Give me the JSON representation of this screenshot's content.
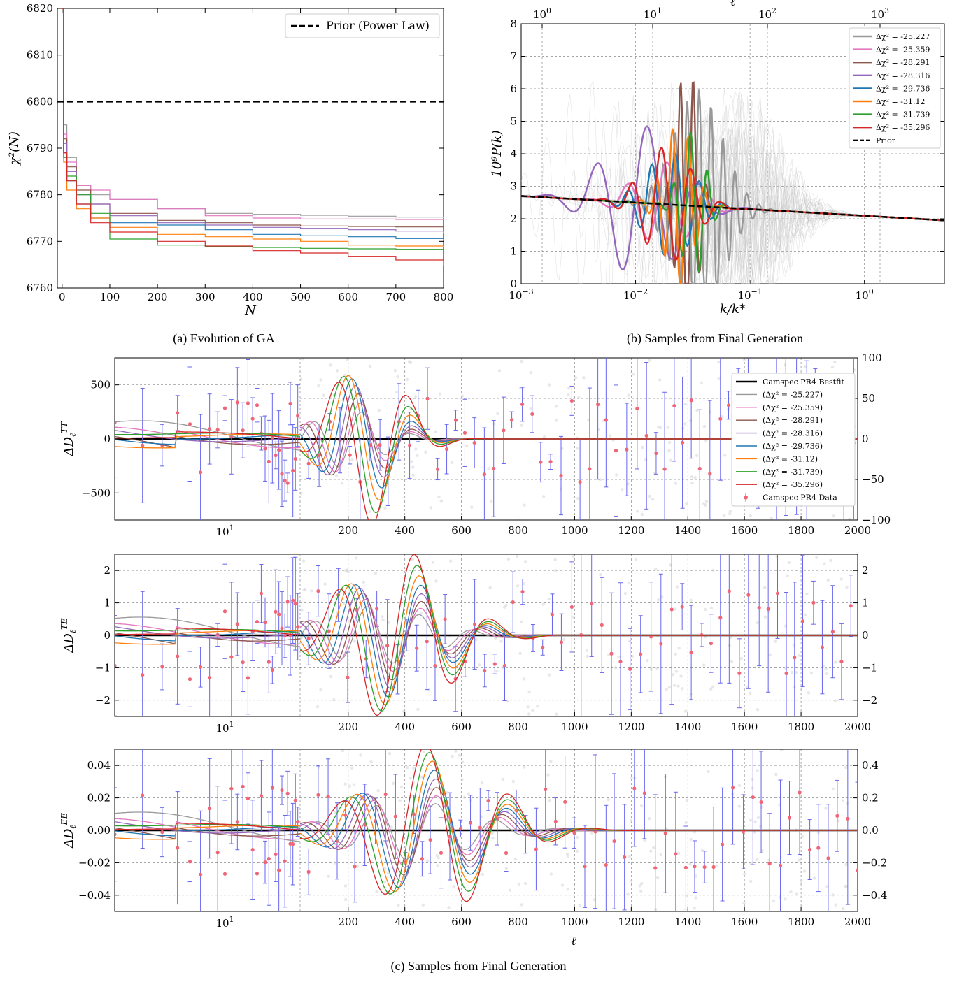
{
  "captions": {
    "a": "(a) Evolution of GA",
    "b": "(b) Samples from Final Generation",
    "c": "(c) Samples from Final Generation"
  },
  "colors": {
    "gray": "#999999",
    "pink": "#e377c2",
    "brown": "#8c564b",
    "purple": "#9467bd",
    "blue": "#1f77b4",
    "orange": "#ff7f0e",
    "green": "#2ca02c",
    "red": "#d62728",
    "errorbar": "#6666ee",
    "marker": "#ee6677"
  },
  "chart_data": [
    {
      "id": "a",
      "type": "line",
      "xlabel": "N",
      "ylabel": "χ²(N)",
      "xlim": [
        -10,
        800
      ],
      "ylim": [
        6760,
        6820
      ],
      "xticks": [
        0,
        100,
        200,
        300,
        400,
        500,
        600,
        700,
        800
      ],
      "yticks": [
        6760,
        6770,
        6780,
        6790,
        6800,
        6810,
        6820
      ],
      "legend": {
        "position": "top-right",
        "entries": [
          "Prior (Power Law)"
        ]
      },
      "prior_value": 6800,
      "series": [
        {
          "color": "gray",
          "x": [
            0,
            3,
            10,
            30,
            60,
            100,
            200,
            300,
            400,
            500,
            600,
            700,
            800
          ],
          "y": [
            6820,
            6795,
            6788,
            6782,
            6780,
            6779,
            6777,
            6776,
            6775.8,
            6775.6,
            6775.4,
            6775.2,
            6775.0
          ]
        },
        {
          "color": "pink",
          "x": [
            0,
            3,
            10,
            30,
            60,
            100,
            200,
            300,
            400,
            500,
            600,
            700,
            800
          ],
          "y": [
            6820,
            6793,
            6787,
            6782,
            6781,
            6779,
            6777,
            6775.5,
            6775,
            6774.8,
            6774.8,
            6774.7,
            6774.6
          ]
        },
        {
          "color": "brown",
          "x": [
            0,
            3,
            10,
            30,
            60,
            100,
            200,
            300,
            400,
            500,
            600,
            700,
            800
          ],
          "y": [
            6820,
            6792,
            6786,
            6781,
            6778,
            6776,
            6774.5,
            6774,
            6773.5,
            6773.3,
            6773.2,
            6773.1,
            6773.0
          ]
        },
        {
          "color": "purple",
          "x": [
            0,
            3,
            10,
            30,
            60,
            100,
            200,
            300,
            400,
            500,
            600,
            700,
            800
          ],
          "y": [
            6820,
            6791,
            6785,
            6780,
            6778,
            6775.5,
            6774,
            6773.5,
            6773,
            6772.8,
            6772.5,
            6772.2,
            6771.7
          ]
        },
        {
          "color": "blue",
          "x": [
            0,
            3,
            10,
            30,
            60,
            100,
            200,
            300,
            400,
            500,
            600,
            700,
            800
          ],
          "y": [
            6820,
            6789,
            6783,
            6778,
            6775,
            6774,
            6773.5,
            6772.5,
            6771.5,
            6771.2,
            6771.0,
            6770.6,
            6770.2
          ]
        },
        {
          "color": "orange",
          "x": [
            0,
            3,
            10,
            30,
            60,
            100,
            200,
            300,
            400,
            500,
            600,
            700,
            800
          ],
          "y": [
            6820,
            6787,
            6781,
            6777,
            6775,
            6773,
            6771.5,
            6771,
            6770.5,
            6770,
            6769.2,
            6769,
            6768.8
          ]
        },
        {
          "color": "green",
          "x": [
            0,
            3,
            10,
            30,
            60,
            100,
            200,
            300,
            400,
            500,
            600,
            700,
            800
          ],
          "y": [
            6820,
            6788,
            6784,
            6780,
            6776,
            6770.5,
            6769.2,
            6768.9,
            6768.7,
            6768.5,
            6768.4,
            6768.3,
            6768.2
          ]
        },
        {
          "color": "red",
          "x": [
            0,
            3,
            10,
            30,
            60,
            100,
            200,
            300,
            400,
            500,
            600,
            700,
            800
          ],
          "y": [
            6820,
            6789,
            6783,
            6778,
            6774,
            6772,
            6770,
            6769,
            6768,
            6767.5,
            6766.8,
            6766,
            6764.7
          ]
        }
      ]
    },
    {
      "id": "b",
      "type": "line",
      "xlabel": "k/k*",
      "ylabel": "10⁹P(k)",
      "toplabel": "ℓ",
      "xscale": "log",
      "xlim": [
        0.001,
        5.0
      ],
      "ylim": [
        0,
        8
      ],
      "yticks": [
        0,
        1,
        2,
        3,
        4,
        5,
        6,
        7,
        8
      ],
      "xticks": [
        {
          "v": 0.001,
          "base": "10",
          "exp": "−3"
        },
        {
          "v": 0.01,
          "base": "10",
          "exp": "−2"
        },
        {
          "v": 0.1,
          "base": "10",
          "exp": "−1"
        },
        {
          "v": 1,
          "base": "10",
          "exp": "0"
        }
      ],
      "top_ticks": [
        {
          "base": "10",
          "exp": "0"
        },
        {
          "base": "10",
          "exp": "1"
        },
        {
          "base": "10",
          "exp": "2"
        },
        {
          "base": "10",
          "exp": "3"
        }
      ],
      "legend": {
        "position": "top-right",
        "entries": [
          {
            "label": "Δχ² = -25.227",
            "color": "gray"
          },
          {
            "label": "Δχ² = -25.359",
            "color": "pink"
          },
          {
            "label": "Δχ² = -28.291",
            "color": "brown"
          },
          {
            "label": "Δχ² = -28.316",
            "color": "purple"
          },
          {
            "label": "Δχ² = -29.736",
            "color": "blue"
          },
          {
            "label": "Δχ² = -31.12",
            "color": "orange"
          },
          {
            "label": "Δχ² = -31.739",
            "color": "green"
          },
          {
            "label": "Δχ² = -35.296",
            "color": "red"
          },
          {
            "label": "Prior",
            "color": "black",
            "dashed": true
          }
        ]
      },
      "prior": {
        "k": [
          0.001,
          5.0
        ],
        "P": [
          2.7,
          1.95
        ]
      }
    },
    {
      "id": "c1",
      "type": "line",
      "ylabel": "ΔD_ℓ^TT",
      "left": {
        "xscale": "log",
        "xlim": [
          2,
          30
        ],
        "ylim": [
          -750,
          750
        ],
        "yticks": [
          -500,
          0,
          500
        ]
      },
      "right": {
        "xlim": [
          30,
          2000
        ],
        "xticks": [
          200,
          400,
          600,
          800,
          1000,
          1200,
          1400,
          1600,
          1800,
          2000
        ],
        "ylim": [
          -100,
          100
        ],
        "yticks": [
          -100,
          -50,
          0,
          50,
          100
        ]
      },
      "legend": {
        "position": "top-right",
        "entries": [
          {
            "label": "Camspec PR4 Bestfit",
            "color": "black"
          },
          {
            "label": "(Δχ² = -25.227)",
            "color": "gray"
          },
          {
            "label": "(Δχ² = -25.359)",
            "color": "pink"
          },
          {
            "label": "(Δχ² = -28.291)",
            "color": "brown"
          },
          {
            "label": "(Δχ² = -28.316)",
            "color": "purple"
          },
          {
            "label": "(Δχ² = -29.736)",
            "color": "blue"
          },
          {
            "label": "(Δχ² = -31.12)",
            "color": "orange"
          },
          {
            "label": "(Δχ² = -31.739)",
            "color": "green"
          },
          {
            "label": "(Δχ² = -35.296)",
            "color": "red"
          },
          {
            "label": "Camspec PR4 Data",
            "color": "marker",
            "marker": true
          }
        ]
      }
    },
    {
      "id": "c2",
      "type": "line",
      "ylabel": "ΔD_ℓ^TE",
      "left": {
        "xscale": "log",
        "xlim": [
          2,
          30
        ],
        "ylim": [
          -2.5,
          2.5
        ],
        "yticks": [
          -2,
          -1,
          0,
          1,
          2
        ]
      },
      "right": {
        "xlim": [
          30,
          2000
        ],
        "xticks": [
          200,
          400,
          600,
          800,
          1000,
          1200,
          1400,
          1600,
          1800,
          2000
        ],
        "ylim": [
          -2.5,
          2.5
        ],
        "yticks": [
          -2,
          -1,
          0,
          1,
          2
        ]
      }
    },
    {
      "id": "c3",
      "type": "line",
      "ylabel": "ΔD_ℓ^EE",
      "xlabel": "ℓ",
      "left": {
        "xscale": "log",
        "xlim": [
          2,
          30
        ],
        "ylim": [
          -0.05,
          0.05
        ],
        "yticks": [
          -0.04,
          -0.02,
          0.0,
          0.02,
          0.04
        ]
      },
      "right": {
        "xlim": [
          30,
          2000
        ],
        "xticks": [
          200,
          400,
          600,
          800,
          1000,
          1200,
          1400,
          1600,
          1800,
          2000
        ],
        "ylim": [
          -0.5,
          0.5
        ],
        "yticks": [
          -0.4,
          -0.2,
          0.0,
          0.2,
          0.4
        ]
      }
    }
  ]
}
